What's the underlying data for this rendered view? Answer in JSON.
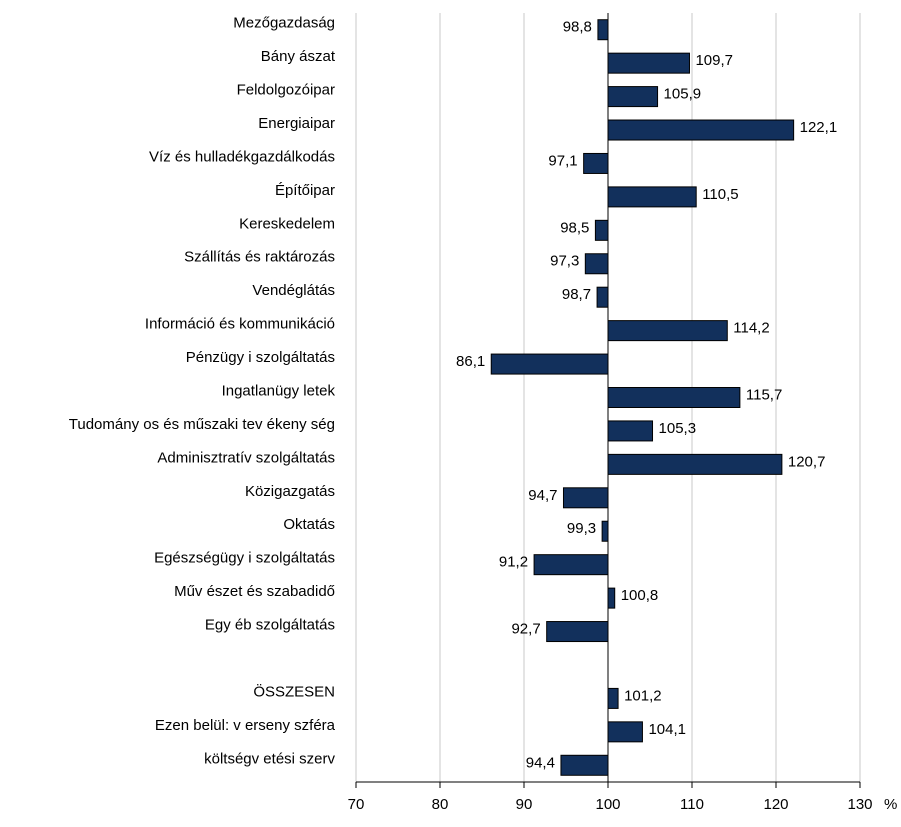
{
  "chart_data": {
    "type": "bar",
    "orientation": "horizontal",
    "categories": [
      "Mezőgazdaság",
      "Bány ászat",
      "Feldolgozóipar",
      "Energiaipar",
      "Víz és hulladékgazdálkodás",
      "Építőipar",
      "Kereskedelem",
      "Szállítás és raktározás",
      "Vendéglátás",
      "Információ és kommunikáció",
      "Pénzügy i szolgáltatás",
      "Ingatlanügy letek",
      "Tudomány os és műszaki tev ékeny ség",
      "Adminisztratív szolgáltatás",
      "Közigazgatás",
      "Oktatás",
      "Egészségügy i szolgáltatás",
      "Műv észet és szabadidő",
      "Egy éb szolgáltatás",
      null,
      "ÖSSZESEN",
      "Ezen belül: v erseny szféra",
      "költségv etési szerv"
    ],
    "values": [
      98.8,
      109.7,
      105.9,
      122.1,
      97.1,
      110.5,
      98.5,
      97.3,
      98.7,
      114.2,
      86.1,
      115.7,
      105.3,
      120.7,
      94.7,
      99.3,
      91.2,
      100.8,
      92.7,
      null,
      101.2,
      104.1,
      94.4
    ],
    "value_labels": [
      "98,8",
      "109,7",
      "105,9",
      "122,1",
      "97,1",
      "110,5",
      "98,5",
      "97,3",
      "98,7",
      "114,2",
      "86,1",
      "115,7",
      "105,3",
      "120,7",
      "94,7",
      "99,3",
      "91,2",
      "100,8",
      "92,7",
      null,
      "101,2",
      "104,1",
      "94,4"
    ],
    "color": "#12305c",
    "base": 100,
    "xlim": [
      70,
      130
    ],
    "xticks": [
      70,
      80,
      90,
      100,
      110,
      120,
      130
    ],
    "xlabel": "%",
    "grid": true
  }
}
